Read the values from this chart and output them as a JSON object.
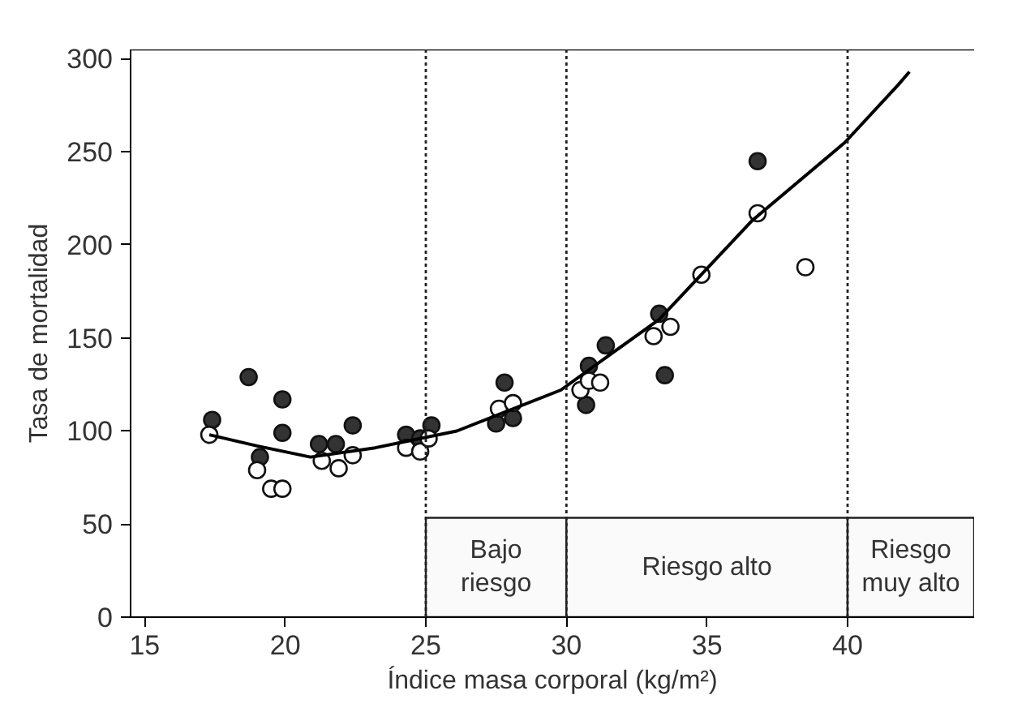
{
  "chart_data": {
    "type": "scatter",
    "xlabel": "Índice masa corporal (kg/m²)",
    "ylabel": "Tasa de mortalidad",
    "xlim": [
      14.5,
      44.5
    ],
    "ylim": [
      0,
      305
    ],
    "xticks": [
      15,
      20,
      25,
      30,
      35,
      40
    ],
    "yticks": [
      0,
      50,
      100,
      150,
      200,
      250,
      300
    ],
    "marker": "circle",
    "series": [
      {
        "color": "#333333",
        "x": [
          17.4,
          18.7,
          19.9,
          19.9,
          19.1,
          21.2,
          21.8,
          22.4,
          24.3,
          24.8,
          25.2,
          27.5,
          27.8,
          28.1,
          30.8,
          30.7,
          31.4,
          33.3,
          33.5,
          36.8
        ],
        "values": [
          106,
          129,
          117,
          99,
          86,
          93,
          93,
          103,
          98,
          96,
          103,
          104,
          126,
          107,
          135,
          114,
          146,
          163,
          130,
          245
        ]
      },
      {
        "color": "#ffffff",
        "x": [
          17.3,
          19.0,
          19.5,
          19.9,
          21.3,
          21.9,
          22.4,
          24.3,
          24.8,
          25.1,
          27.6,
          28.1,
          30.5,
          30.8,
          31.2,
          33.1,
          33.7,
          34.8,
          36.8,
          38.5
        ],
        "values": [
          98,
          79,
          69,
          69,
          84,
          80,
          87,
          91,
          89,
          96,
          112,
          115,
          122,
          127,
          126,
          151,
          156,
          184,
          217,
          188
        ]
      },
      {
        "type": "line",
        "marker": "none",
        "color": "#000000",
        "x": [
          17.3,
          19.0,
          20.9,
          23.2,
          26.1,
          29.8,
          33.3,
          36.6,
          39.9,
          41.8,
          42.2
        ],
        "values": [
          98,
          92,
          86,
          91,
          100,
          122,
          160,
          213,
          255,
          286,
          293
        ]
      }
    ],
    "ref_lines": [
      {
        "axis": "x",
        "value": 25,
        "line_style": "dotted"
      },
      {
        "axis": "x",
        "value": 30,
        "line_style": "dotted"
      },
      {
        "axis": "x",
        "value": 40,
        "line_style": "dotted"
      }
    ],
    "bands": [
      {
        "axis": "x",
        "from": 25,
        "to": 30,
        "label": "Bajo riesgo",
        "color": "#fafafa"
      },
      {
        "axis": "x",
        "from": 30,
        "to": 40,
        "label": "Riesgo alto",
        "color": "#fafafa"
      },
      {
        "axis": "x",
        "from": 40,
        "to": 44.5,
        "label": "Riesgo muy alto",
        "color": "#fafafa"
      }
    ]
  }
}
